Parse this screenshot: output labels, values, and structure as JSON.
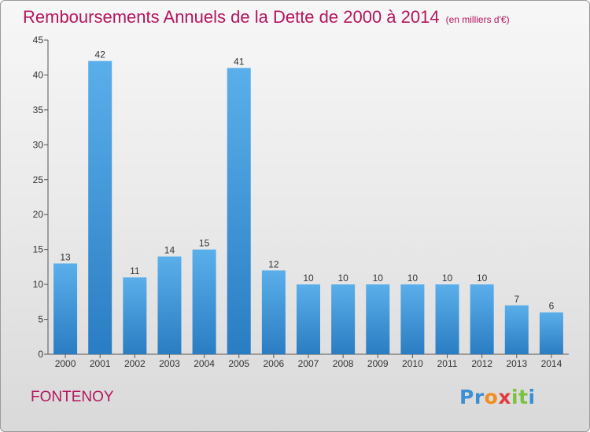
{
  "chart_data": {
    "type": "bar",
    "title": "Remboursements Annuels de la Dette de 2000 à 2014",
    "subtitle": "(en milliers d'€)",
    "categories": [
      "2000",
      "2001",
      "2002",
      "2003",
      "2004",
      "2005",
      "2006",
      "2007",
      "2008",
      "2009",
      "2010",
      "2011",
      "2012",
      "2013",
      "2014"
    ],
    "values": [
      13,
      42,
      11,
      14,
      15,
      41,
      12,
      10,
      10,
      10,
      10,
      10,
      10,
      7,
      6
    ],
    "ylim": [
      0,
      45
    ],
    "yticks": [
      0,
      5,
      10,
      15,
      20,
      25,
      30,
      35,
      40,
      45
    ],
    "grid": false,
    "bar_color_top": "#5aafea",
    "bar_color_bottom": "#2a7dc2"
  },
  "commune": "FONTENOY",
  "logo": {
    "letters": [
      "P",
      "r",
      "o",
      "x",
      "i",
      "t",
      "i"
    ],
    "colors": [
      "#3a8fd6",
      "#3a8fd6",
      "#f28c1e",
      "#e23b3b",
      "#7cc242",
      "#7cc242",
      "#3a8fd6"
    ]
  }
}
